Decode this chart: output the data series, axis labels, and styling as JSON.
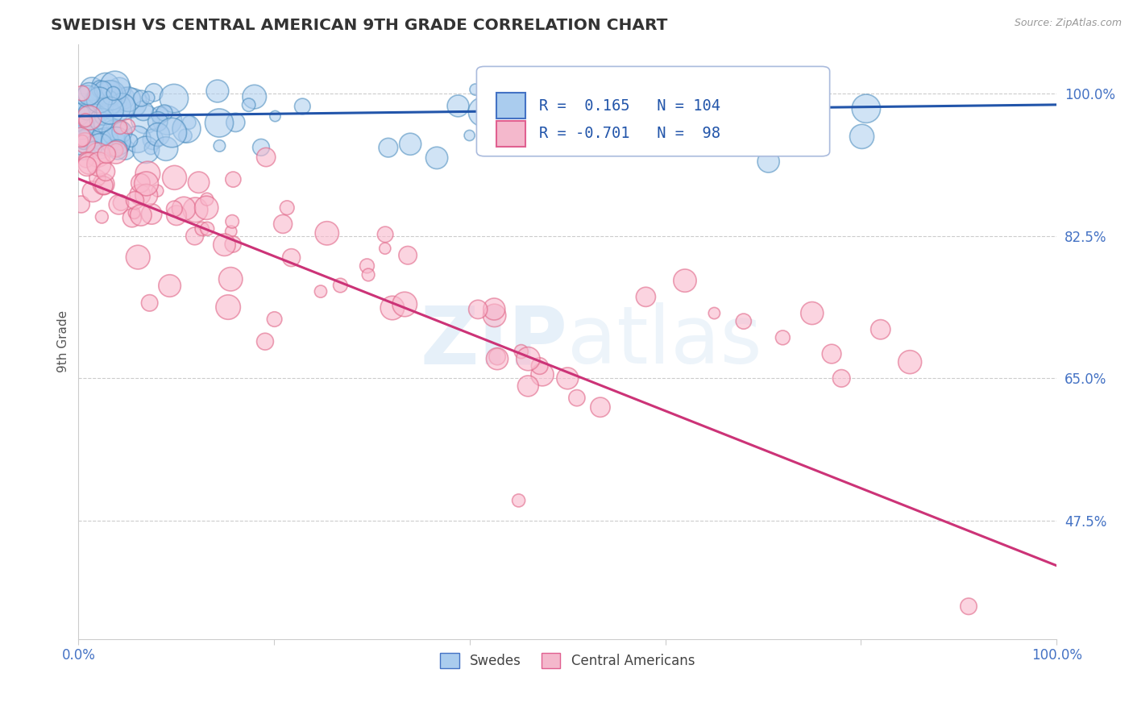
{
  "title": "SWEDISH VS CENTRAL AMERICAN 9TH GRADE CORRELATION CHART",
  "source": "Source: ZipAtlas.com",
  "ylabel": "9th Grade",
  "ytick_labels": [
    "47.5%",
    "65.0%",
    "82.5%",
    "100.0%"
  ],
  "ytick_values": [
    0.475,
    0.65,
    0.825,
    1.0
  ],
  "ylim": [
    0.33,
    1.06
  ],
  "xlim": [
    0.0,
    1.0
  ],
  "blue_R": 0.165,
  "blue_N": 104,
  "pink_R": -0.701,
  "pink_N": 98,
  "blue_fill_color": "#aaccee",
  "blue_edge_color": "#4488bb",
  "pink_fill_color": "#f9b8cc",
  "pink_edge_color": "#e06688",
  "blue_line_color": "#2255aa",
  "pink_line_color": "#cc3377",
  "legend_label_blue": "Swedes",
  "legend_label_pink": "Central Americans",
  "watermark_zip": "ZIP",
  "watermark_atlas": "atlas",
  "background_color": "#ffffff",
  "grid_color": "#cccccc",
  "axis_label_color": "#4472c4",
  "title_color": "#333333",
  "blue_trend_y0": 0.972,
  "blue_trend_y1": 0.986,
  "pink_trend_y0": 0.895,
  "pink_trend_y1": 0.42
}
